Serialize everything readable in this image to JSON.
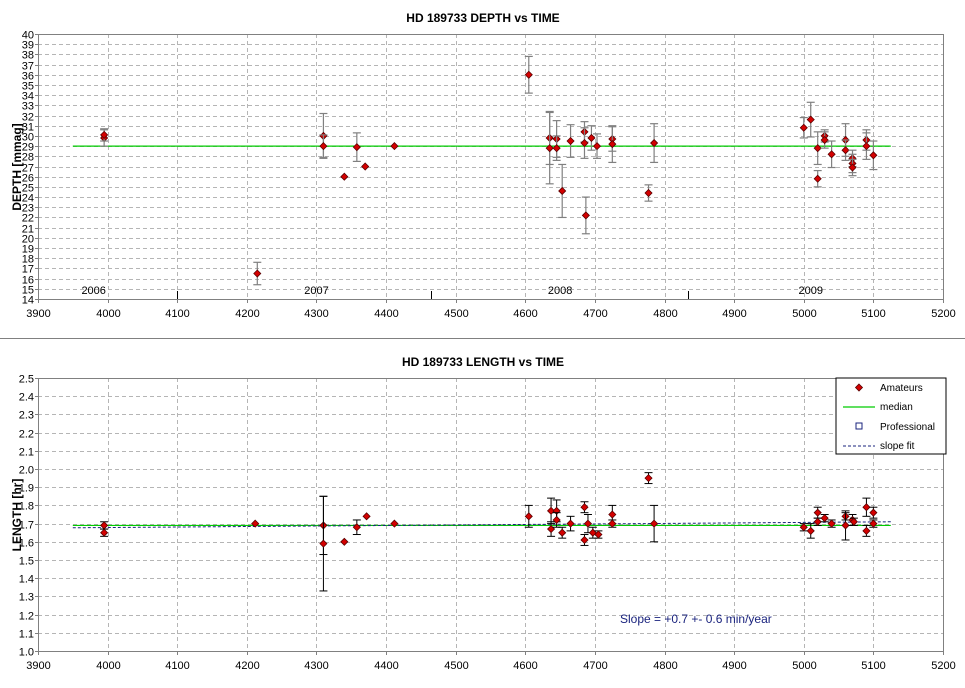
{
  "chart_data": [
    {
      "type": "scatter",
      "title": "HD 189733 DEPTH vs TIME",
      "ylabel": "DEPTH [mmag]",
      "xlabel": "",
      "xlim": [
        3900,
        5200
      ],
      "ylim": [
        14,
        40
      ],
      "xticks": [
        3900,
        4000,
        4100,
        4200,
        4300,
        4400,
        4500,
        4600,
        4700,
        4800,
        4900,
        5000,
        5100,
        5200
      ],
      "yticks": [
        14,
        15,
        16,
        17,
        18,
        19,
        20,
        21,
        22,
        23,
        24,
        25,
        26,
        27,
        28,
        29,
        30,
        31,
        32,
        33,
        34,
        35,
        36,
        37,
        38,
        39,
        40
      ],
      "grid": true,
      "year_labels": [
        {
          "text": "2006",
          "x": 3980
        },
        {
          "text": "2007",
          "x": 4300
        },
        {
          "text": "2008",
          "x": 4650
        },
        {
          "text": "2009",
          "x": 5010
        }
      ],
      "year_dividers": [
        4100,
        4465,
        4833
      ],
      "median": {
        "x": [
          3950,
          5125
        ],
        "y": 29.0
      },
      "points": [
        {
          "x": 3995,
          "y": 29.8,
          "err": 0.8
        },
        {
          "x": 3995,
          "y": 30.1,
          "err": 0.6
        },
        {
          "x": 4215,
          "y": 16.5,
          "err": 1.1
        },
        {
          "x": 4310,
          "y": 30.0,
          "err": 2.2
        },
        {
          "x": 4310,
          "y": 29.0,
          "err": 1.1
        },
        {
          "x": 4340,
          "y": 26.0,
          "err": 0
        },
        {
          "x": 4358,
          "y": 28.9,
          "err": 1.4
        },
        {
          "x": 4370,
          "y": 27.0,
          "err": 0
        },
        {
          "x": 4412,
          "y": 29.0,
          "err": 0
        },
        {
          "x": 4605,
          "y": 36.0,
          "err": 1.8
        },
        {
          "x": 4635,
          "y": 29.8,
          "err": 2.6
        },
        {
          "x": 4635,
          "y": 28.8,
          "err": 3.5
        },
        {
          "x": 4645,
          "y": 29.7,
          "err": 1.8
        },
        {
          "x": 4645,
          "y": 28.8,
          "err": 1.2
        },
        {
          "x": 4653,
          "y": 24.6,
          "err": 2.6
        },
        {
          "x": 4665,
          "y": 29.5,
          "err": 1.6
        },
        {
          "x": 4685,
          "y": 30.4,
          "err": 1.0
        },
        {
          "x": 4685,
          "y": 29.3,
          "err": 1.5
        },
        {
          "x": 4687,
          "y": 22.2,
          "err": 1.8
        },
        {
          "x": 4695,
          "y": 29.8,
          "err": 1.2
        },
        {
          "x": 4703,
          "y": 29.0,
          "err": 1.2
        },
        {
          "x": 4725,
          "y": 29.7,
          "err": 1.2
        },
        {
          "x": 4725,
          "y": 29.2,
          "err": 1.8
        },
        {
          "x": 4777,
          "y": 24.4,
          "err": 0.8
        },
        {
          "x": 4785,
          "y": 29.3,
          "err": 1.9
        },
        {
          "x": 5000,
          "y": 30.8,
          "err": 1.0
        },
        {
          "x": 5010,
          "y": 31.6,
          "err": 1.7
        },
        {
          "x": 5020,
          "y": 28.8,
          "err": 1.6
        },
        {
          "x": 5020,
          "y": 25.8,
          "err": 0.8
        },
        {
          "x": 5030,
          "y": 30.0,
          "err": 0.6
        },
        {
          "x": 5030,
          "y": 29.6,
          "err": 0.8
        },
        {
          "x": 5040,
          "y": 28.2,
          "err": 1.3
        },
        {
          "x": 5060,
          "y": 29.6,
          "err": 1.6
        },
        {
          "x": 5060,
          "y": 28.6,
          "err": 1.0
        },
        {
          "x": 5070,
          "y": 27.8,
          "err": 0.8
        },
        {
          "x": 5070,
          "y": 27.3,
          "err": 0.9
        },
        {
          "x": 5070,
          "y": 26.9,
          "err": 0.8
        },
        {
          "x": 5090,
          "y": 29.6,
          "err": 1.0
        },
        {
          "x": 5090,
          "y": 29.0,
          "err": 1.3
        },
        {
          "x": 5100,
          "y": 28.1,
          "err": 1.4
        }
      ]
    },
    {
      "type": "scatter",
      "title": "HD 189733 LENGTH vs TIME",
      "ylabel": "LENGTH [hr]",
      "xlabel": "",
      "xlim": [
        3900,
        5200
      ],
      "ylim": [
        1.0,
        2.5
      ],
      "xticks": [
        3900,
        4000,
        4100,
        4200,
        4300,
        4400,
        4500,
        4600,
        4700,
        4800,
        4900,
        5000,
        5100,
        5200
      ],
      "yticks": [
        "1.0",
        "1.1",
        "1.2",
        "1.3",
        "1.4",
        "1.5",
        "1.6",
        "1.7",
        "1.8",
        "1.9",
        "2.0",
        "2.1",
        "2.2",
        "2.3",
        "2.4",
        "2.5"
      ],
      "grid": true,
      "legend": {
        "placement": "top-right",
        "entries": [
          {
            "label": "Amateurs",
            "symbol": "diamond",
            "color": "#d40000"
          },
          {
            "label": "median",
            "symbol": "line",
            "color": "#00cc00"
          },
          {
            "label": "Professional",
            "symbol": "square",
            "color": "#1a237e"
          },
          {
            "label": "slope fit",
            "symbol": "dashed",
            "color": "#1a237e"
          }
        ]
      },
      "annotation": {
        "text": "Slope = +0.7 +- 0.6 min/year",
        "x": 4620,
        "y": 1.175
      },
      "median": {
        "x": [
          3950,
          5125
        ],
        "y": 1.69
      },
      "slope_fit": {
        "x": [
          3950,
          5125
        ],
        "y": [
          1.677,
          1.71
        ]
      },
      "points": [
        {
          "x": 3995,
          "y": 1.69,
          "err": 0.02
        },
        {
          "x": 3995,
          "y": 1.65,
          "err": 0.02
        },
        {
          "x": 4212,
          "y": 1.7,
          "err": 0
        },
        {
          "x": 4310,
          "y": 1.69,
          "err": 0.16
        },
        {
          "x": 4310,
          "y": 1.59,
          "err": 0.26
        },
        {
          "x": 4340,
          "y": 1.6,
          "err": 0
        },
        {
          "x": 4358,
          "y": 1.68,
          "err": 0.04
        },
        {
          "x": 4372,
          "y": 1.74,
          "err": 0
        },
        {
          "x": 4412,
          "y": 1.7,
          "err": 0
        },
        {
          "x": 4605,
          "y": 1.74,
          "err": 0.06
        },
        {
          "x": 4637,
          "y": 1.77,
          "err": 0.07
        },
        {
          "x": 4637,
          "y": 1.67,
          "err": 0.04
        },
        {
          "x": 4645,
          "y": 1.77,
          "err": 0.06
        },
        {
          "x": 4645,
          "y": 1.72,
          "err": 0.04
        },
        {
          "x": 4653,
          "y": 1.65,
          "err": 0.03
        },
        {
          "x": 4665,
          "y": 1.7,
          "err": 0.04
        },
        {
          "x": 4685,
          "y": 1.79,
          "err": 0.03
        },
        {
          "x": 4685,
          "y": 1.61,
          "err": 0.03
        },
        {
          "x": 4690,
          "y": 1.7,
          "err": 0.05
        },
        {
          "x": 4697,
          "y": 1.65,
          "err": 0.03
        },
        {
          "x": 4705,
          "y": 1.64,
          "err": 0.02
        },
        {
          "x": 4725,
          "y": 1.75,
          "err": 0.05
        },
        {
          "x": 4725,
          "y": 1.7,
          "err": 0.02
        },
        {
          "x": 4777,
          "y": 1.95,
          "err": 0.03
        },
        {
          "x": 4785,
          "y": 1.7,
          "err": 0.1
        },
        {
          "x": 5000,
          "y": 1.68,
          "err": 0.02
        },
        {
          "x": 5010,
          "y": 1.66,
          "err": 0.04
        },
        {
          "x": 5020,
          "y": 1.76,
          "err": 0.03
        },
        {
          "x": 5020,
          "y": 1.71,
          "err": 0.02
        },
        {
          "x": 5030,
          "y": 1.73,
          "err": 0.02
        },
        {
          "x": 5040,
          "y": 1.7,
          "err": 0.02
        },
        {
          "x": 5060,
          "y": 1.74,
          "err": 0.02
        },
        {
          "x": 5060,
          "y": 1.69,
          "err": 0.08
        },
        {
          "x": 5070,
          "y": 1.72,
          "err": 0.03
        },
        {
          "x": 5072,
          "y": 1.71,
          "err": 0.02
        },
        {
          "x": 5090,
          "y": 1.79,
          "err": 0.05
        },
        {
          "x": 5090,
          "y": 1.66,
          "err": 0.03
        },
        {
          "x": 5100,
          "y": 1.76,
          "err": 0.03
        },
        {
          "x": 5100,
          "y": 1.7,
          "err": 0.02
        }
      ]
    }
  ]
}
